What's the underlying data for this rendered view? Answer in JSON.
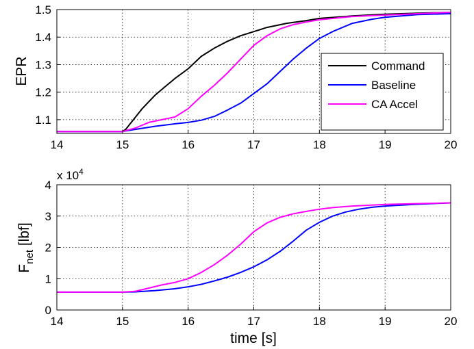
{
  "chart_data": [
    {
      "type": "line",
      "xlabel": "",
      "ylabel": "EPR",
      "xlim": [
        14,
        20
      ],
      "ylim": [
        1.05,
        1.5
      ],
      "xticks": [
        "14",
        "15",
        "16",
        "17",
        "18",
        "19",
        "20"
      ],
      "yticks": [
        "1.1",
        "1.2",
        "1.3",
        "1.4",
        "1.5"
      ],
      "grid": true,
      "legend_position": "right",
      "series": [
        {
          "name": "Command",
          "color": "#000000",
          "x": [
            14,
            15,
            15.05,
            15.1,
            15.2,
            15.3,
            15.4,
            15.5,
            15.6,
            15.8,
            16.0,
            16.2,
            16.4,
            16.6,
            16.8,
            17.0,
            17.2,
            17.5,
            17.8,
            18.0,
            18.5,
            19.0,
            19.5,
            20.0
          ],
          "y": [
            1.057,
            1.057,
            1.065,
            1.08,
            1.11,
            1.14,
            1.165,
            1.19,
            1.21,
            1.25,
            1.285,
            1.33,
            1.36,
            1.385,
            1.405,
            1.42,
            1.435,
            1.45,
            1.46,
            1.468,
            1.477,
            1.483,
            1.487,
            1.49
          ]
        },
        {
          "name": "Baseline",
          "color": "#0000ff",
          "x": [
            14,
            15,
            15.2,
            15.5,
            15.8,
            16.0,
            16.2,
            16.4,
            16.6,
            16.8,
            17.0,
            17.2,
            17.4,
            17.6,
            17.8,
            18.0,
            18.2,
            18.5,
            18.8,
            19.0,
            19.5,
            20.0
          ],
          "y": [
            1.057,
            1.057,
            1.065,
            1.076,
            1.085,
            1.09,
            1.098,
            1.112,
            1.135,
            1.16,
            1.195,
            1.23,
            1.275,
            1.32,
            1.36,
            1.395,
            1.42,
            1.45,
            1.465,
            1.472,
            1.482,
            1.485
          ]
        },
        {
          "name": "CA Accel",
          "color": "#ff00ff",
          "x": [
            14,
            15,
            15.2,
            15.4,
            15.6,
            15.8,
            16.0,
            16.2,
            16.4,
            16.6,
            16.8,
            17.0,
            17.2,
            17.4,
            17.6,
            17.8,
            18.0,
            18.5,
            19.0,
            19.5,
            20.0
          ],
          "y": [
            1.057,
            1.057,
            1.07,
            1.09,
            1.1,
            1.11,
            1.14,
            1.185,
            1.225,
            1.27,
            1.32,
            1.37,
            1.405,
            1.43,
            1.445,
            1.455,
            1.463,
            1.475,
            1.48,
            1.485,
            1.49
          ]
        }
      ]
    },
    {
      "type": "line",
      "xlabel": "time [s]",
      "ylabel_main": "F",
      "ylabel_sub": "net",
      "ylabel_unit": " [lbf]",
      "exponent_base": "x 10",
      "exponent_power": "4",
      "xlim": [
        14,
        20
      ],
      "ylim": [
        0,
        4
      ],
      "xticks": [
        "14",
        "15",
        "16",
        "17",
        "18",
        "19",
        "20"
      ],
      "yticks": [
        "0",
        "1",
        "2",
        "3",
        "4"
      ],
      "grid": true,
      "series": [
        {
          "name": "Baseline",
          "color": "#0000ff",
          "x": [
            14,
            15,
            15.2,
            15.5,
            15.8,
            16.0,
            16.2,
            16.4,
            16.6,
            16.8,
            17.0,
            17.2,
            17.4,
            17.6,
            17.8,
            18.0,
            18.2,
            18.4,
            18.6,
            18.8,
            19.0,
            19.5,
            20.0
          ],
          "y": [
            0.57,
            0.57,
            0.58,
            0.62,
            0.68,
            0.74,
            0.82,
            0.93,
            1.05,
            1.2,
            1.38,
            1.6,
            1.87,
            2.2,
            2.55,
            2.8,
            3.0,
            3.13,
            3.22,
            3.28,
            3.32,
            3.38,
            3.42
          ]
        },
        {
          "name": "CA Accel",
          "color": "#ff00ff",
          "x": [
            14,
            15,
            15.2,
            15.4,
            15.6,
            15.8,
            16.0,
            16.2,
            16.4,
            16.6,
            16.8,
            17.0,
            17.2,
            17.4,
            17.6,
            17.8,
            18.0,
            18.2,
            18.5,
            19.0,
            19.5,
            20.0
          ],
          "y": [
            0.57,
            0.57,
            0.6,
            0.7,
            0.8,
            0.88,
            1.0,
            1.2,
            1.45,
            1.75,
            2.1,
            2.5,
            2.78,
            2.96,
            3.07,
            3.15,
            3.22,
            3.27,
            3.32,
            3.37,
            3.4,
            3.42
          ]
        }
      ]
    }
  ]
}
